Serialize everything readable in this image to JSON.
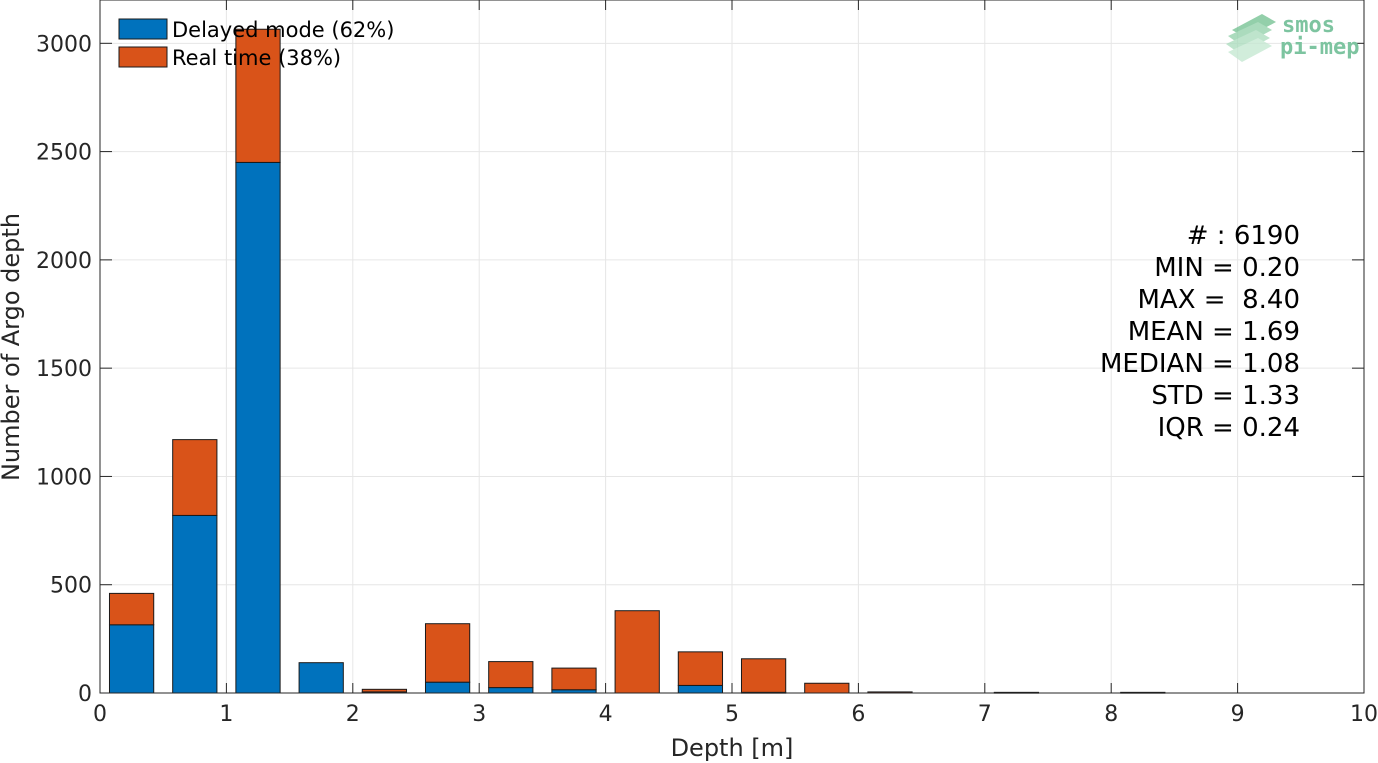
{
  "chart_data": {
    "type": "bar",
    "stacked": true,
    "xlabel": "Depth [m]",
    "ylabel": "Number of Argo depth",
    "xlim": [
      0,
      10
    ],
    "ylim": [
      0,
      3200
    ],
    "xticks": [
      0,
      1,
      2,
      3,
      4,
      5,
      6,
      7,
      8,
      9,
      10
    ],
    "yticks": [
      0,
      500,
      1000,
      1500,
      2000,
      2500,
      3000
    ],
    "grid": true,
    "legend_position": "top-left",
    "bin_width": 0.5,
    "bar_width": 0.35,
    "x": [
      0.25,
      0.75,
      1.25,
      1.75,
      2.25,
      2.75,
      3.25,
      3.75,
      4.25,
      4.75,
      5.25,
      5.75,
      6.25,
      6.75,
      7.25,
      7.75,
      8.25,
      8.75,
      9.25,
      9.75
    ],
    "series": [
      {
        "name": "Delayed mode (62%)",
        "color": "#0072BD",
        "values": [
          315,
          820,
          2450,
          140,
          5,
          50,
          25,
          15,
          0,
          35,
          3,
          0,
          0,
          0,
          0,
          0,
          0,
          0,
          0,
          0
        ]
      },
      {
        "name": "Real time (38%)",
        "color": "#D95319",
        "values": [
          145,
          350,
          615,
          0,
          12,
          270,
          120,
          100,
          380,
          155,
          155,
          45,
          5,
          0,
          3,
          0,
          3,
          0,
          0,
          0
        ]
      }
    ]
  },
  "stats": [
    "# : 6190",
    "MIN = 0.20",
    "MAX =  8.40",
    "MEAN = 1.69",
    "MEDIAN = 1.08",
    "STD = 1.33",
    "IQR = 0.24"
  ],
  "logo": {
    "line1": "smos",
    "line2": "pi-mep",
    "color": "#7dc4a0"
  }
}
